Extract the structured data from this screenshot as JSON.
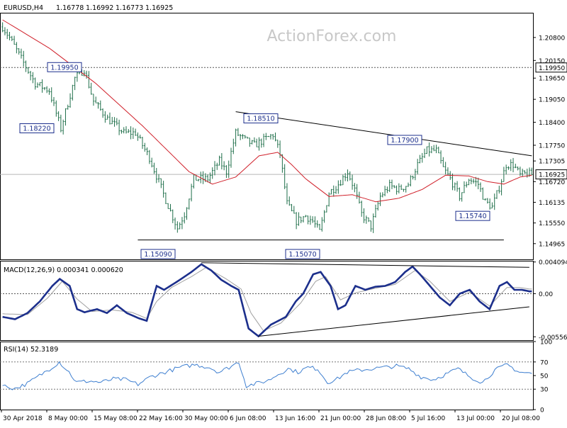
{
  "header": {
    "symbol": "EURUSD,H4",
    "open": "1.16778",
    "high": "1.16992",
    "low": "1.16773",
    "close": "1.16925"
  },
  "watermark": "ActionForex.com",
  "colors": {
    "background": "#ffffff",
    "price": "#1f6f4a",
    "ma": "#d0202a",
    "macd": "#1c2f8c",
    "signal": "#a0a0a0",
    "rsi": "#3e7fd0",
    "trend": "#000000",
    "grid": "#b8b8b8",
    "label_border": "#1c2f8c",
    "price_tag_bg": "#ffffff",
    "watermark": "#c8c8c8"
  },
  "chart_data": [
    {
      "type": "ohlc",
      "panel": "price",
      "symbol": "EURUSD,H4",
      "ylim": [
        1.1452,
        1.215
      ],
      "y_ticks": [
        "1.20800",
        "1.20150",
        "1.19650",
        "1.19050",
        "1.18400",
        "1.17750",
        "1.17305",
        "1.16720",
        "1.16135",
        "1.15550",
        "1.14965"
      ],
      "x_ticks": [
        "30 Apr 2018",
        "8 May 00:00",
        "15 May 08:00",
        "22 May 16:00",
        "30 May 00:00",
        "6 Jun 08:00",
        "13 Jun 16:00",
        "21 Jun 00:00",
        "28 Jun 08:00",
        "5 Jul 16:00",
        "13 Jul 00:00",
        "20 Jul 08:00"
      ],
      "current_price": "1.16925",
      "reference_level": "1.19950",
      "annotations": [
        {
          "label": "1.19950",
          "x_index": 17,
          "value": 1.1995
        },
        {
          "label": "1.18220",
          "x_index": 14,
          "value": 1.1822
        },
        {
          "label": "1.18510",
          "x_index": 100,
          "value": 1.1851
        },
        {
          "label": "1.17900",
          "x_index": 178,
          "value": 1.179
        },
        {
          "label": "1.15740",
          "x_index": 206,
          "value": 1.1574
        },
        {
          "label": "1.15090",
          "x_index": 65,
          "value": 1.1509
        },
        {
          "label": "1.15070",
          "x_index": 130,
          "value": 1.1507
        }
      ],
      "trendlines": [
        {
          "name": "resistance",
          "points": [
            [
              100,
              1.187
            ],
            [
              227,
              1.1745
            ]
          ]
        },
        {
          "name": "support",
          "points": [
            [
              58,
              1.1507
            ],
            [
              215,
              1.1507
            ]
          ]
        }
      ],
      "key_points": [
        [
          0,
          1.211
        ],
        [
          3,
          1.208
        ],
        [
          8,
          1.202
        ],
        [
          14,
          1.195
        ],
        [
          20,
          1.193
        ],
        [
          25,
          1.1822
        ],
        [
          31,
          1.1965
        ],
        [
          35,
          1.199
        ],
        [
          39,
          1.19
        ],
        [
          45,
          1.185
        ],
        [
          52,
          1.181
        ],
        [
          57,
          1.181
        ],
        [
          63,
          1.174
        ],
        [
          70,
          1.162
        ],
        [
          75,
          1.154
        ],
        [
          78,
          1.158
        ],
        [
          82,
          1.168
        ],
        [
          88,
          1.168
        ],
        [
          93,
          1.173
        ],
        [
          96,
          1.17
        ],
        [
          100,
          1.181
        ],
        [
          104,
          1.179
        ],
        [
          108,
          1.1775
        ],
        [
          112,
          1.179
        ],
        [
          116,
          1.1805
        ],
        [
          119,
          1.175
        ],
        [
          122,
          1.161
        ],
        [
          126,
          1.156
        ],
        [
          130,
          1.1575
        ],
        [
          133,
          1.156
        ],
        [
          136,
          1.153
        ],
        [
          140,
          1.164
        ],
        [
          144,
          1.1665
        ],
        [
          148,
          1.17
        ],
        [
          151,
          1.165
        ],
        [
          154,
          1.158
        ],
        [
          158,
          1.1545
        ],
        [
          162,
          1.163
        ],
        [
          166,
          1.166
        ],
        [
          170,
          1.165
        ],
        [
          174,
          1.1665
        ],
        [
          178,
          1.172
        ],
        [
          182,
          1.176
        ],
        [
          186,
          1.176
        ],
        [
          189,
          1.171
        ],
        [
          192,
          1.168
        ],
        [
          196,
          1.163
        ],
        [
          200,
          1.168
        ],
        [
          204,
          1.1665
        ],
        [
          207,
          1.1615
        ],
        [
          210,
          1.16
        ],
        [
          213,
          1.1655
        ],
        [
          216,
          1.172
        ],
        [
          219,
          1.172
        ],
        [
          222,
          1.169
        ],
        [
          225,
          1.1695
        ],
        [
          227,
          1.1692
        ]
      ],
      "ma_key_points": [
        [
          0,
          1.213
        ],
        [
          20,
          1.205
        ],
        [
          40,
          1.195
        ],
        [
          60,
          1.183
        ],
        [
          80,
          1.17
        ],
        [
          90,
          1.1665
        ],
        [
          100,
          1.1685
        ],
        [
          110,
          1.1745
        ],
        [
          118,
          1.1755
        ],
        [
          124,
          1.172
        ],
        [
          130,
          1.168
        ],
        [
          140,
          1.163
        ],
        [
          150,
          1.1635
        ],
        [
          160,
          1.1615
        ],
        [
          170,
          1.1625
        ],
        [
          180,
          1.165
        ],
        [
          190,
          1.169
        ],
        [
          200,
          1.1688
        ],
        [
          208,
          1.1672
        ],
        [
          215,
          1.1665
        ],
        [
          222,
          1.1685
        ],
        [
          227,
          1.169
        ]
      ]
    },
    {
      "type": "line",
      "panel": "macd",
      "title": "MACD(12,26,9) 0.000341 0.000620",
      "ylim": [
        -0.006,
        0.00425
      ],
      "y_ticks": [
        "0.004094",
        "0.00",
        "-0.005568"
      ],
      "macd_key_points": [
        [
          0,
          -0.003
        ],
        [
          5,
          -0.0033
        ],
        [
          10,
          -0.0025
        ],
        [
          15,
          -0.001
        ],
        [
          20,
          0.001
        ],
        [
          23,
          0.0019
        ],
        [
          27,
          0.001
        ],
        [
          30,
          -0.002
        ],
        [
          33,
          -0.0024
        ],
        [
          38,
          -0.002
        ],
        [
          42,
          -0.0025
        ],
        [
          46,
          -0.0015
        ],
        [
          50,
          -0.0025
        ],
        [
          55,
          -0.0032
        ],
        [
          58,
          -0.0035
        ],
        [
          62,
          0.001
        ],
        [
          65,
          0.0005
        ],
        [
          70,
          0.0015
        ],
        [
          76,
          0.0028
        ],
        [
          80,
          0.0038
        ],
        [
          84,
          0.003
        ],
        [
          88,
          0.0018
        ],
        [
          92,
          0.001
        ],
        [
          95,
          0.0005
        ],
        [
          99,
          -0.0045
        ],
        [
          103,
          -0.0055
        ],
        [
          108,
          -0.004
        ],
        [
          114,
          -0.003
        ],
        [
          118,
          -0.001
        ],
        [
          121,
          0.0
        ],
        [
          125,
          0.0025
        ],
        [
          128,
          0.0028
        ],
        [
          132,
          0.001
        ],
        [
          135,
          -0.002
        ],
        [
          138,
          -0.0015
        ],
        [
          142,
          0.001
        ],
        [
          146,
          0.0005
        ],
        [
          150,
          0.0009
        ],
        [
          154,
          0.001
        ],
        [
          158,
          0.0015
        ],
        [
          162,
          0.0028
        ],
        [
          165,
          0.0035
        ],
        [
          168,
          0.0025
        ],
        [
          172,
          0.001
        ],
        [
          176,
          -0.0005
        ],
        [
          180,
          -0.0015
        ],
        [
          184,
          0.0
        ],
        [
          188,
          0.0005
        ],
        [
          192,
          -0.001
        ],
        [
          196,
          -0.002
        ],
        [
          200,
          0.001
        ],
        [
          203,
          0.0015
        ],
        [
          206,
          0.0005
        ],
        [
          209,
          0.0005
        ],
        [
          212,
          0.0003
        ]
      ],
      "signal_key_points": [
        [
          0,
          -0.0026
        ],
        [
          10,
          -0.0027
        ],
        [
          18,
          -0.0006
        ],
        [
          24,
          0.0016
        ],
        [
          30,
          -0.0007
        ],
        [
          36,
          -0.0023
        ],
        [
          44,
          -0.0021
        ],
        [
          52,
          -0.0024
        ],
        [
          58,
          -0.0032
        ],
        [
          62,
          -0.001
        ],
        [
          68,
          0.0008
        ],
        [
          76,
          0.0022
        ],
        [
          82,
          0.0034
        ],
        [
          90,
          0.0019
        ],
        [
          96,
          0.0006
        ],
        [
          100,
          -0.0025
        ],
        [
          105,
          -0.0048
        ],
        [
          112,
          -0.0038
        ],
        [
          120,
          -0.0012
        ],
        [
          126,
          0.0016
        ],
        [
          130,
          0.0022
        ],
        [
          136,
          -0.0008
        ],
        [
          142,
          0.0001
        ],
        [
          150,
          0.0007
        ],
        [
          158,
          0.0012
        ],
        [
          166,
          0.003
        ],
        [
          172,
          0.0016
        ],
        [
          180,
          -0.001
        ],
        [
          188,
          0.0002
        ],
        [
          196,
          -0.0016
        ],
        [
          203,
          0.0008
        ],
        [
          208,
          0.0008
        ],
        [
          212,
          0.0006
        ]
      ],
      "trendlines": [
        {
          "name": "upper",
          "points": [
            [
              80,
              0.004
            ],
            [
              212,
              0.0034
            ]
          ]
        },
        {
          "name": "lower",
          "points": [
            [
              103,
              -0.0055
            ],
            [
              212,
              -0.0017
            ]
          ]
        }
      ]
    },
    {
      "type": "line",
      "panel": "rsi",
      "title": "RSI(14) 52.3189",
      "ylim": [
        0,
        100
      ],
      "y_ticks": [
        "100",
        "70",
        "50",
        "30",
        "0"
      ],
      "levels": [
        70,
        30
      ],
      "rsi_key_points": [
        [
          0,
          35
        ],
        [
          5,
          31
        ],
        [
          10,
          38
        ],
        [
          15,
          50
        ],
        [
          20,
          62
        ],
        [
          23,
          70
        ],
        [
          27,
          55
        ],
        [
          30,
          40
        ],
        [
          35,
          42
        ],
        [
          40,
          40
        ],
        [
          45,
          45
        ],
        [
          50,
          44
        ],
        [
          55,
          37
        ],
        [
          60,
          48
        ],
        [
          66,
          55
        ],
        [
          72,
          62
        ],
        [
          78,
          66
        ],
        [
          84,
          62
        ],
        [
          88,
          55
        ],
        [
          92,
          62
        ],
        [
          96,
          70
        ],
        [
          99,
          35
        ],
        [
          103,
          38
        ],
        [
          108,
          43
        ],
        [
          112,
          52
        ],
        [
          116,
          60
        ],
        [
          120,
          55
        ],
        [
          124,
          62
        ],
        [
          128,
          60
        ],
        [
          132,
          40
        ],
        [
          136,
          45
        ],
        [
          140,
          55
        ],
        [
          145,
          58
        ],
        [
          150,
          60
        ],
        [
          155,
          62
        ],
        [
          160,
          64
        ],
        [
          165,
          60
        ],
        [
          170,
          48
        ],
        [
          175,
          44
        ],
        [
          180,
          52
        ],
        [
          185,
          60
        ],
        [
          190,
          48
        ],
        [
          195,
          40
        ],
        [
          200,
          58
        ],
        [
          205,
          66
        ],
        [
          210,
          55
        ],
        [
          215,
          53
        ]
      ]
    }
  ]
}
